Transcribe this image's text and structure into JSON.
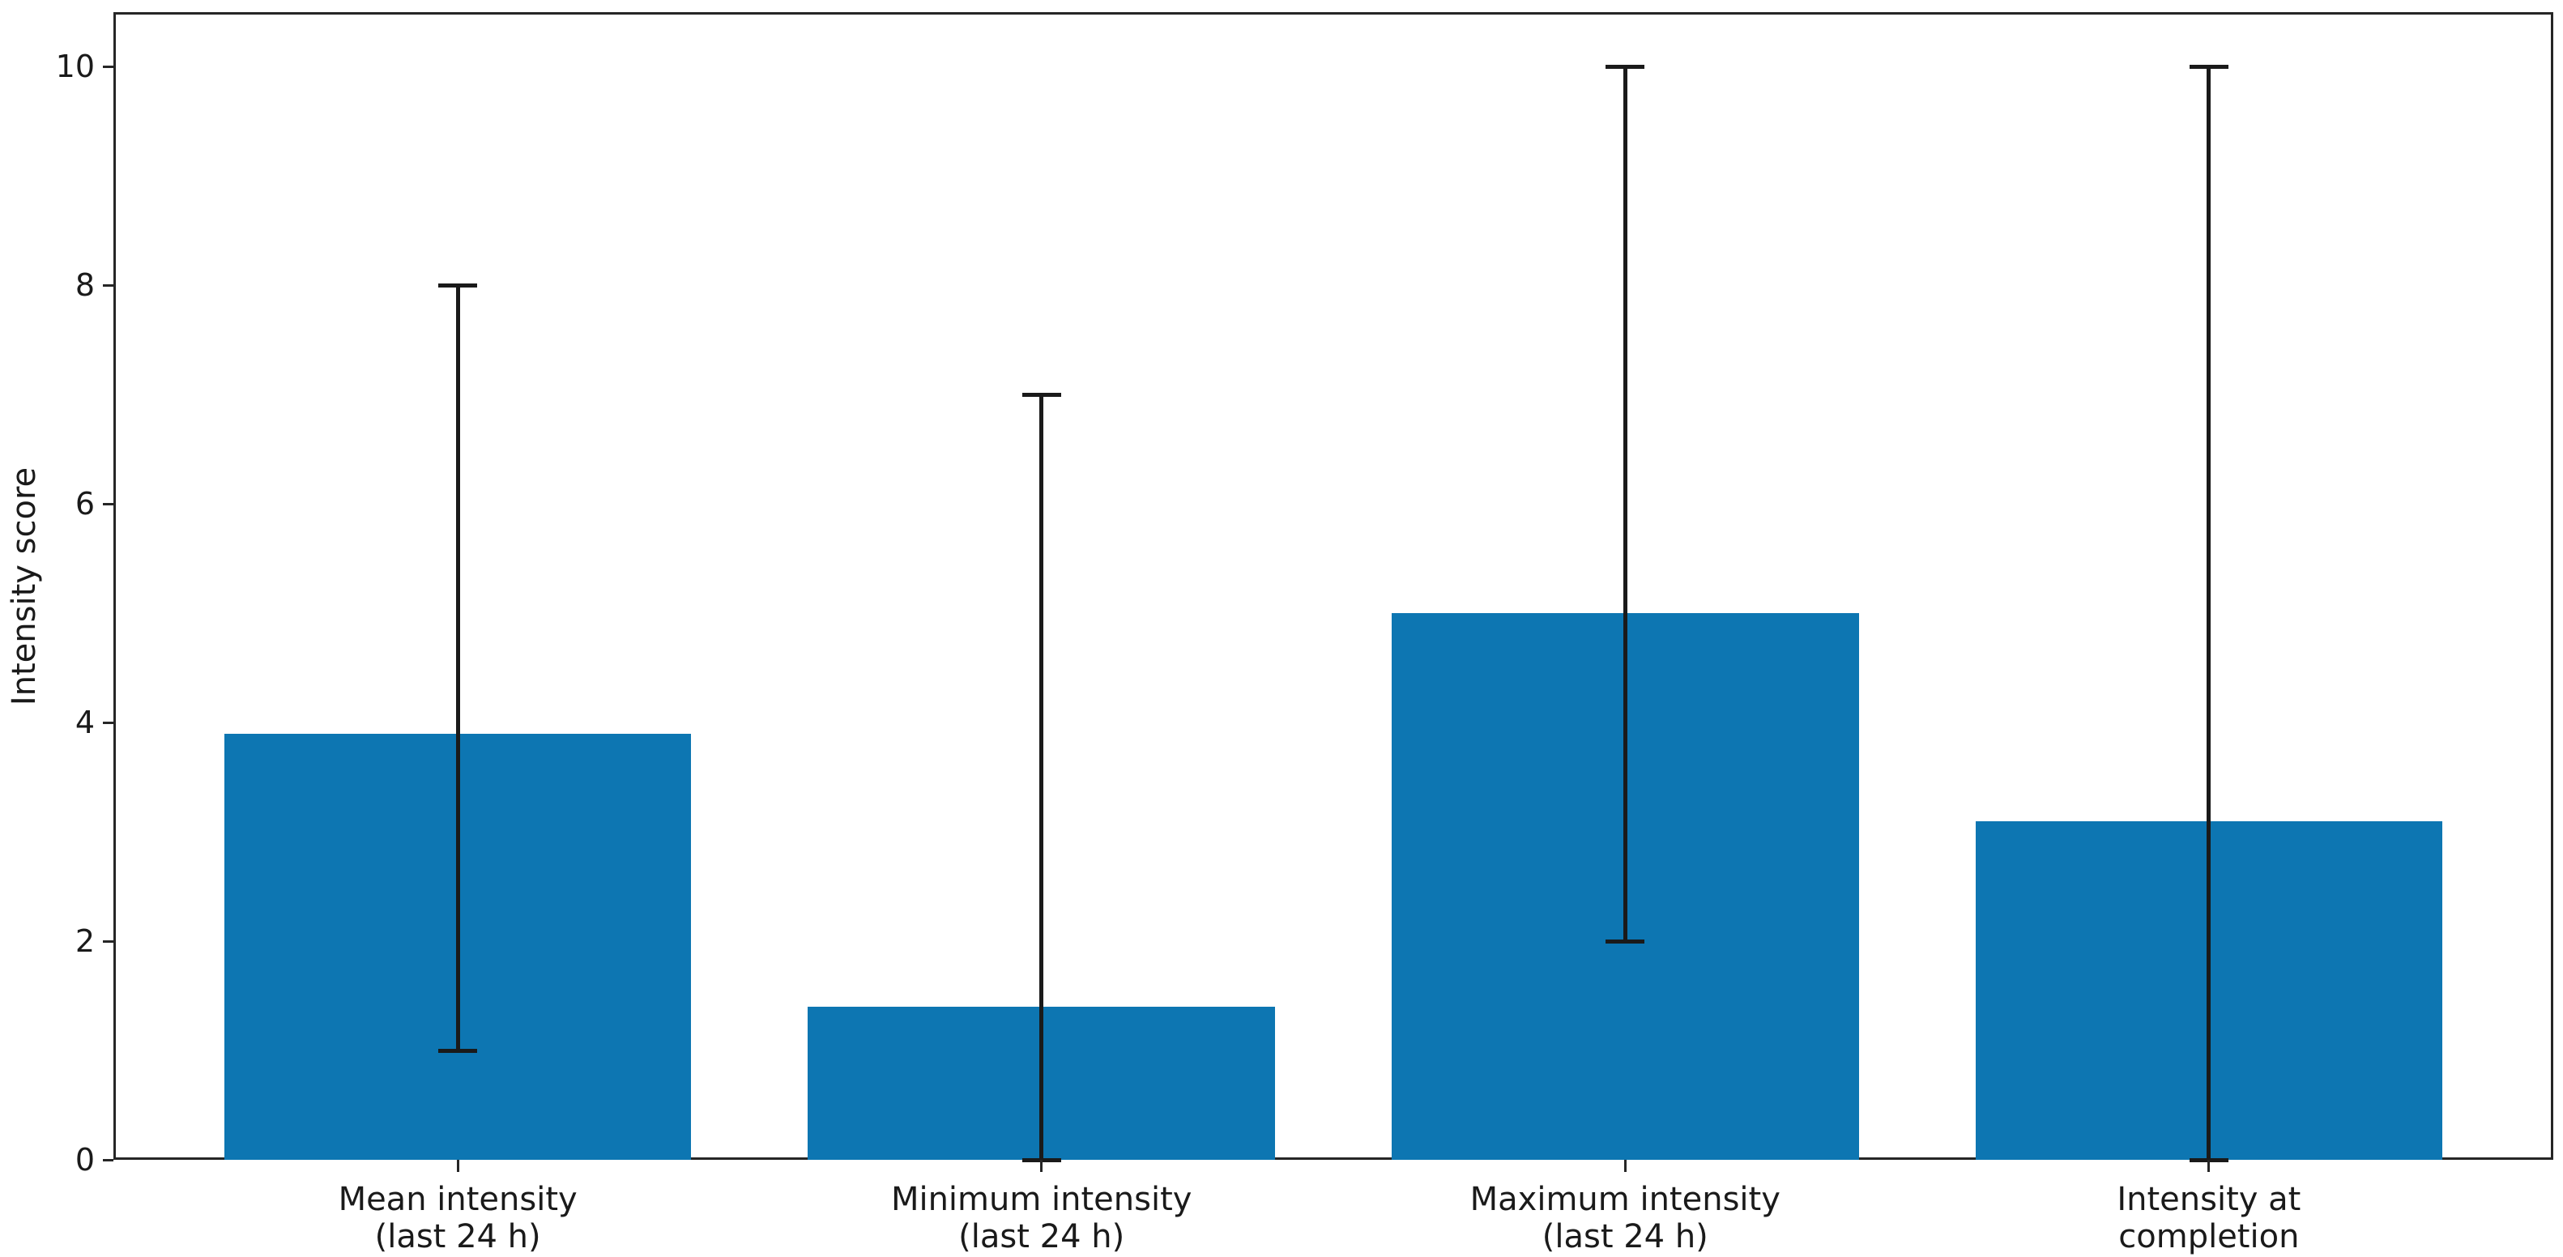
{
  "chart_data": {
    "type": "bar",
    "title": "",
    "xlabel": "",
    "ylabel": "Intensity score",
    "categories": [
      "Mean intensity\n(last 24 h)",
      "Minimum intensity\n(last 24 h)",
      "Maximum intensity\n(last 24 h)",
      "Intensity at\ncompletion"
    ],
    "values": [
      3.9,
      1.4,
      5.0,
      3.1
    ],
    "error_bar_min": [
      1.0,
      0.0,
      2.0,
      0.0
    ],
    "error_bar_max": [
      8.0,
      7.0,
      10.0,
      10.0
    ],
    "yticks": [
      0,
      2,
      4,
      6,
      8,
      10
    ],
    "ytick_labels": [
      "0",
      "2",
      "4",
      "6",
      "8",
      "10"
    ],
    "ylim": [
      0,
      10.5
    ],
    "grid": false,
    "legend": null,
    "bar_color": "#0d76b2",
    "error_color": "#1a1a1a",
    "axis_color": "#262626"
  }
}
